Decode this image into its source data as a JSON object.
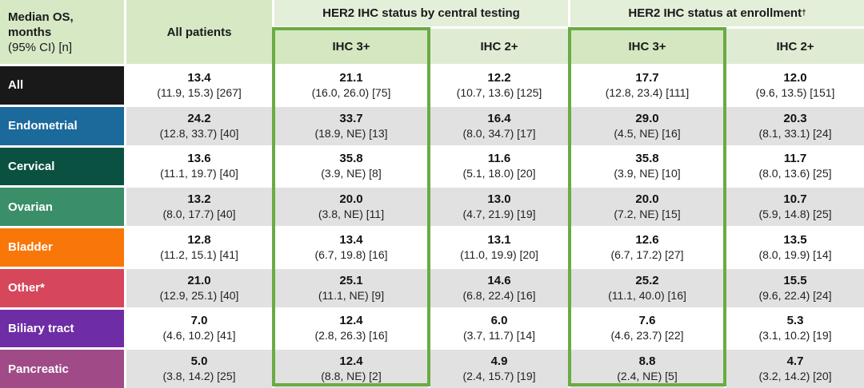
{
  "colors": {
    "header_bg": "#d7e8c5",
    "group_band_bg": "#e4efda",
    "ihc3_header_bg": "#d4e7c0",
    "ihc2_header_bg": "#dfecd3",
    "highlight_border": "#6aab43",
    "row_even_bg": "#e1e1e1",
    "row_odd_bg": "#ffffff"
  },
  "chart_data": {
    "type": "table",
    "title": "Median OS, months (95% CI) [n]",
    "corner": {
      "line1": "Median OS,",
      "line2": "months",
      "line3": "(95% CI) [n]"
    },
    "all_patients_label": "All patients",
    "column_groups": [
      {
        "label": "HER2 IHC status by central testing",
        "dagger": "",
        "columns": [
          "IHC 3+",
          "IHC 2+"
        ]
      },
      {
        "label": "HER2 IHC status at enrollment",
        "dagger": "†",
        "columns": [
          "IHC 3+",
          "IHC 2+"
        ]
      }
    ],
    "sub_headers": {
      "central_ihc3": "IHC 3+",
      "central_ihc2": "IHC 2+",
      "enroll_ihc3": "IHC 3+",
      "enroll_ihc2": "IHC 2+"
    },
    "rows": [
      {
        "label": "All",
        "color": "#191919",
        "all": {
          "median": "13.4",
          "ci": "(11.9, 15.3) [267]"
        },
        "central_ihc3": {
          "median": "21.1",
          "ci": "(16.0, 26.0) [75]"
        },
        "central_ihc2": {
          "median": "12.2",
          "ci": "(10.7, 13.6) [125]"
        },
        "enroll_ihc3": {
          "median": "17.7",
          "ci": "(12.8, 23.4) [111]"
        },
        "enroll_ihc2": {
          "median": "12.0",
          "ci": "(9.6, 13.5) [151]"
        }
      },
      {
        "label": "Endometrial",
        "color": "#1c699c",
        "all": {
          "median": "24.2",
          "ci": "(12.8, 33.7) [40]"
        },
        "central_ihc3": {
          "median": "33.7",
          "ci": "(18.9, NE) [13]"
        },
        "central_ihc2": {
          "median": "16.4",
          "ci": "(8.0, 34.7) [17]"
        },
        "enroll_ihc3": {
          "median": "29.0",
          "ci": "(4.5, NE) [16]"
        },
        "enroll_ihc2": {
          "median": "20.3",
          "ci": "(8.1, 33.1) [24]"
        }
      },
      {
        "label": "Cervical",
        "color": "#0a5142",
        "all": {
          "median": "13.6",
          "ci": "(11.1, 19.7) [40]"
        },
        "central_ihc3": {
          "median": "35.8",
          "ci": "(3.9, NE) [8]"
        },
        "central_ihc2": {
          "median": "11.6",
          "ci": "(5.1, 18.0) [20]"
        },
        "enroll_ihc3": {
          "median": "35.8",
          "ci": "(3.9, NE) [10]"
        },
        "enroll_ihc2": {
          "median": "11.7",
          "ci": "(8.0, 13.6) [25]"
        }
      },
      {
        "label": "Ovarian",
        "color": "#3a8f68",
        "all": {
          "median": "13.2",
          "ci": "(8.0, 17.7) [40]"
        },
        "central_ihc3": {
          "median": "20.0",
          "ci": "(3.8, NE) [11]"
        },
        "central_ihc2": {
          "median": "13.0",
          "ci": "(4.7, 21.9) [19]"
        },
        "enroll_ihc3": {
          "median": "20.0",
          "ci": "(7.2, NE) [15]"
        },
        "enroll_ihc2": {
          "median": "10.7",
          "ci": "(5.9, 14.8) [25]"
        }
      },
      {
        "label": "Bladder",
        "color": "#f87708",
        "all": {
          "median": "12.8",
          "ci": "(11.2, 15.1) [41]"
        },
        "central_ihc3": {
          "median": "13.4",
          "ci": "(6.7, 19.8) [16]"
        },
        "central_ihc2": {
          "median": "13.1",
          "ci": "(11.0, 19.9) [20]"
        },
        "enroll_ihc3": {
          "median": "12.6",
          "ci": "(6.7, 17.2) [27]"
        },
        "enroll_ihc2": {
          "median": "13.5",
          "ci": "(8.0, 19.9) [14]"
        }
      },
      {
        "label": "Other*",
        "color": "#d6475b",
        "all": {
          "median": "21.0",
          "ci": "(12.9, 25.1) [40]"
        },
        "central_ihc3": {
          "median": "25.1",
          "ci": "(11.1, NE) [9]"
        },
        "central_ihc2": {
          "median": "14.6",
          "ci": "(6.8, 22.4) [16]"
        },
        "enroll_ihc3": {
          "median": "25.2",
          "ci": "(11.1, 40.0) [16]"
        },
        "enroll_ihc2": {
          "median": "15.5",
          "ci": "(9.6, 22.4) [24]"
        }
      },
      {
        "label": "Biliary tract",
        "color": "#6e2ca5",
        "all": {
          "median": "7.0",
          "ci": "(4.6, 10.2) [41]"
        },
        "central_ihc3": {
          "median": "12.4",
          "ci": "(2.8, 26.3) [16]"
        },
        "central_ihc2": {
          "median": "6.0",
          "ci": "(3.7, 11.7) [14]"
        },
        "enroll_ihc3": {
          "median": "7.6",
          "ci": "(4.6, 23.7) [22]"
        },
        "enroll_ihc2": {
          "median": "5.3",
          "ci": "(3.1, 10.2) [19]"
        }
      },
      {
        "label": "Pancreatic",
        "color": "#a04b88",
        "all": {
          "median": "5.0",
          "ci": "(3.8, 14.2) [25]"
        },
        "central_ihc3": {
          "median": "12.4",
          "ci": "(8.8, NE) [2]"
        },
        "central_ihc2": {
          "median": "4.9",
          "ci": "(2.4, 15.7) [19]"
        },
        "enroll_ihc3": {
          "median": "8.8",
          "ci": "(2.4, NE) [5]"
        },
        "enroll_ihc2": {
          "median": "4.7",
          "ci": "(3.2, 14.2) [20]"
        }
      }
    ]
  }
}
